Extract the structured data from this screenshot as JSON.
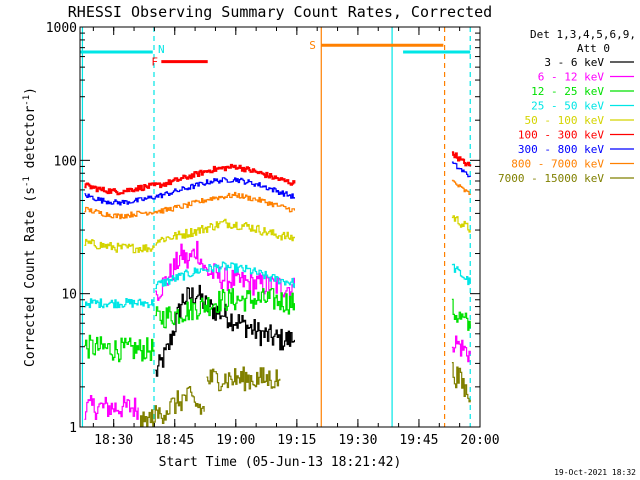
{
  "chart_data": {
    "type": "line",
    "title": "RHESSI Observing Summary Count Rates, Corrected",
    "xlabel": "Start Time (05-Jun-13 18:21:42)",
    "ylabel_main": "Corrected Count Rate (s",
    "ylabel_sup1": "-1",
    "ylabel_mid": " detector",
    "ylabel_sup2": "-1",
    "ylabel_end": ")",
    "footer_date": "19-Oct-2021 18:32",
    "xlim": [
      18.362,
      20.0
    ],
    "ylim": [
      1,
      1000
    ],
    "y_scale": "log",
    "x_ticks": [
      {
        "value": 18.5,
        "label": "18:30"
      },
      {
        "value": 18.75,
        "label": "18:45"
      },
      {
        "value": 19.0,
        "label": "19:00"
      },
      {
        "value": 19.25,
        "label": "19:15"
      },
      {
        "value": 19.5,
        "label": "19:30"
      },
      {
        "value": 19.75,
        "label": "19:45"
      },
      {
        "value": 20.0,
        "label": "20:00"
      }
    ],
    "y_ticks": [
      {
        "value": 1,
        "label": "1"
      },
      {
        "value": 10,
        "label": "10"
      },
      {
        "value": 100,
        "label": "100"
      },
      {
        "value": 1000,
        "label": "1000"
      }
    ],
    "legend_header_1": "Det 1,3,4,5,6,9,",
    "legend_header_2": "Att 0",
    "legend": [
      {
        "label": "3 - 6 keV",
        "color": "#000000"
      },
      {
        "label": "6 - 12 keV",
        "color": "#ff00ff"
      },
      {
        "label": "12 - 25 keV",
        "color": "#00e000"
      },
      {
        "label": "25 - 50 keV",
        "color": "#00e6e6"
      },
      {
        "label": "50 - 100 keV",
        "color": "#d4d400"
      },
      {
        "label": "100 - 300 keV",
        "color": "#ff0000"
      },
      {
        "label": "300 - 800 keV",
        "color": "#0000ff"
      },
      {
        "label": "800 - 7000 keV",
        "color": "#ff8000"
      },
      {
        "label": "7000 - 15000 keV",
        "color": "#808000"
      }
    ],
    "series": [
      {
        "name": "3 - 6 keV",
        "color": "#000000",
        "segments": [
          {
            "x": [
              18.67,
              18.72,
              18.78,
              18.84,
              18.88,
              18.95,
              19.02,
              19.1,
              19.18,
              19.24
            ],
            "y": [
              2.5,
              3.8,
              9.0,
              10.0,
              8.0,
              7.0,
              6.0,
              5.0,
              4.5,
              4.5
            ]
          }
        ]
      },
      {
        "name": "6 - 12 keV",
        "color": "#ff00ff",
        "segments": [
          {
            "x": [
              18.38,
              18.45,
              18.52,
              18.6
            ],
            "y": [
              1.4,
              1.4,
              1.4,
              1.4
            ]
          },
          {
            "x": [
              18.67,
              18.72,
              18.78,
              18.8,
              18.84,
              18.87,
              18.95,
              19.05,
              19.15,
              19.24
            ],
            "y": [
              10.0,
              13.0,
              20.0,
              17.0,
              22.0,
              15.0,
              13.0,
              12.0,
              11.5,
              11.0
            ]
          },
          {
            "x": [
              19.885,
              19.92,
              19.96
            ],
            "y": [
              4.5,
              4.0,
              3.5
            ]
          }
        ]
      },
      {
        "name": "12 - 25 keV",
        "color": "#00e000",
        "segments": [
          {
            "x": [
              18.38,
              18.45,
              18.52,
              18.6,
              18.665
            ],
            "y": [
              4.0,
              3.9,
              3.8,
              3.8,
              3.8
            ]
          },
          {
            "x": [
              18.67,
              18.75,
              18.85,
              18.95,
              19.05,
              19.15,
              19.24
            ],
            "y": [
              6.5,
              7.0,
              8.0,
              9.0,
              9.0,
              9.0,
              8.5
            ]
          },
          {
            "x": [
              19.885,
              19.92,
              19.96
            ],
            "y": [
              7.5,
              6.5,
              5.5
            ]
          }
        ]
      },
      {
        "name": "25 - 50 keV",
        "color": "#00e6e6",
        "segments": [
          {
            "x": [
              18.38,
              18.45,
              18.52,
              18.6,
              18.665
            ],
            "y": [
              8.5,
              8.5,
              8.5,
              8.5,
              8.5
            ]
          },
          {
            "x": [
              18.67,
              18.75,
              18.85,
              18.95,
              19.05,
              19.15,
              19.24
            ],
            "y": [
              11.5,
              13.0,
              15.0,
              16.0,
              15.0,
              13.0,
              12.0
            ]
          },
          {
            "x": [
              19.885,
              19.92,
              19.96
            ],
            "y": [
              16.0,
              14.0,
              12.0
            ]
          }
        ]
      },
      {
        "name": "50 - 100 keV",
        "color": "#d4d400",
        "segments": [
          {
            "x": [
              18.38,
              18.45,
              18.52,
              18.6,
              18.665
            ],
            "y": [
              24.0,
              23.0,
              22.0,
              22.0,
              22.0
            ]
          },
          {
            "x": [
              18.67,
              18.75,
              18.85,
              18.95,
              19.05,
              19.15,
              19.24
            ],
            "y": [
              25.0,
              27.0,
              30.0,
              34.0,
              32.0,
              28.0,
              26.0
            ]
          },
          {
            "x": [
              19.885,
              19.92,
              19.96
            ],
            "y": [
              38.0,
              34.0,
              30.0
            ]
          }
        ]
      },
      {
        "name": "100 - 300 keV",
        "color": "#ff0000",
        "segments": [
          {
            "x": [
              18.38,
              18.45,
              18.52,
              18.6,
              18.7,
              18.8,
              18.9,
              19.0,
              19.1,
              19.2,
              19.24
            ],
            "y": [
              65.0,
              60.0,
              58.0,
              62.0,
              66.0,
              75.0,
              85.0,
              90.0,
              80.0,
              70.0,
              67.0
            ]
          },
          {
            "x": [
              19.885,
              19.92,
              19.96
            ],
            "y": [
              115.0,
              100.0,
              90.0
            ]
          }
        ]
      },
      {
        "name": "300 - 800 keV",
        "color": "#0000ff",
        "segments": [
          {
            "x": [
              18.38,
              18.45,
              18.52,
              18.6,
              18.7,
              18.8,
              18.9,
              19.0,
              19.1,
              19.2,
              19.24
            ],
            "y": [
              55.0,
              50.0,
              48.0,
              50.0,
              55.0,
              62.0,
              70.0,
              72.0,
              65.0,
              56.0,
              53.0
            ]
          },
          {
            "x": [
              19.885,
              19.92,
              19.96
            ],
            "y": [
              95.0,
              85.0,
              75.0
            ]
          }
        ]
      },
      {
        "name": "800 - 7000 keV",
        "color": "#ff8000",
        "segments": [
          {
            "x": [
              18.38,
              18.45,
              18.52,
              18.6,
              18.7,
              18.8,
              18.9,
              19.0,
              19.1,
              19.2,
              19.24
            ],
            "y": [
              43.0,
              40.0,
              38.0,
              40.0,
              42.0,
              46.0,
              52.0,
              55.0,
              50.0,
              44.0,
              42.0
            ]
          },
          {
            "x": [
              19.885,
              19.92,
              19.96
            ],
            "y": [
              70.0,
              62.0,
              55.0
            ]
          }
        ]
      },
      {
        "name": "7000 - 15000 keV",
        "color": "#808000",
        "segments": [
          {
            "x": [
              18.6,
              18.7,
              18.8,
              18.87
            ],
            "y": [
              1.0,
              1.3,
              1.7,
              1.3
            ]
          },
          {
            "x": [
              18.88,
              19.0,
              19.1,
              19.18
            ],
            "y": [
              2.3,
              2.3,
              2.3,
              2.3
            ]
          },
          {
            "x": [
              19.885,
              19.92,
              19.96
            ],
            "y": [
              2.6,
              2.2,
              1.6
            ]
          }
        ]
      }
    ],
    "annotations": {
      "n_label": "N",
      "f_label": "F",
      "s_label": "S",
      "flag_lines": [
        {
          "label_ref": "n",
          "x0": 18.362,
          "x1": 18.66,
          "y": 650,
          "color": "#00e6e6"
        },
        {
          "label_ref": "n",
          "x0": 19.685,
          "x1": 19.96,
          "y": 650,
          "color": "#00e6e6"
        },
        {
          "label_ref": "f",
          "x0": 18.695,
          "x1": 18.885,
          "y": 550,
          "color": "#ff0000"
        },
        {
          "label_ref": "s",
          "x0": 19.35,
          "x1": 19.85,
          "y": 730,
          "color": "#ff8000"
        }
      ],
      "vlines": [
        {
          "x": 18.372,
          "color": "#00e6e6",
          "dash": false
        },
        {
          "x": 18.665,
          "color": "#00e6e6",
          "dash": true
        },
        {
          "x": 19.35,
          "color": "#ff8000",
          "dash": false
        },
        {
          "x": 19.64,
          "color": "#00e6e6",
          "dash": false
        },
        {
          "x": 19.855,
          "color": "#ff8000",
          "dash": true
        },
        {
          "x": 19.96,
          "color": "#00e6e6",
          "dash": true
        }
      ]
    }
  }
}
